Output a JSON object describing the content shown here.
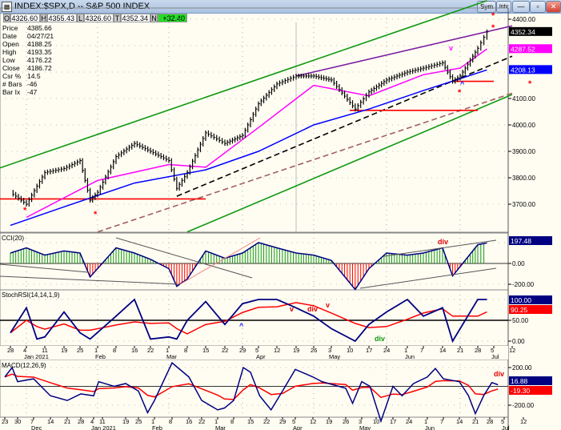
{
  "window": {
    "title": "INDEX:$SPX,D -- S&P 500 INDEX",
    "buttons": [
      "Sym",
      "Intv"
    ]
  },
  "ohlc_bar": {
    "O": "4326.60",
    "H": "4355.43",
    "L": "4326.60",
    "T": "4352.34",
    "N": "+32.40"
  },
  "info_panel": [
    [
      "Price",
      "4385.66"
    ],
    [
      "Date",
      "04/27/21"
    ],
    [
      "Open",
      "4188.25"
    ],
    [
      "High",
      "4193.35"
    ],
    [
      "Low",
      "4176.22"
    ],
    [
      "Close",
      "4186.72"
    ],
    [
      "Csr %",
      "14.5"
    ],
    [
      "# Bars",
      "-46"
    ],
    [
      "Bar Ix",
      "-47"
    ]
  ],
  "colors": {
    "up_channel": "#119911",
    "ma_fast": "#ff00ff",
    "ma_slow": "#0000ff",
    "cci_pos": "#119911",
    "cci_neg": "#ff0000",
    "indicator": "#000080",
    "signal": "#ff0000",
    "trend_purple": "#7b1fa2",
    "support": "#ff0000",
    "ohlc_change_bg": "#22dd22"
  },
  "chart_data": [
    {
      "type": "bar",
      "name": "price",
      "title": "INDEX:$SPX,D -- S&P 500 INDEX",
      "ylim": [
        3600,
        4450
      ],
      "yticks": [
        "4400.00",
        "4100.00",
        "4000.00",
        "3900.00",
        "3800.00",
        "3700.00"
      ],
      "last_labels": {
        "price": "4352.34",
        "ma_fast": "4287.52",
        "ma_slow": "4208.13"
      },
      "closes": [
        [
          "2020-12-28",
          3745
        ],
        [
          "2021-01-04",
          3700
        ],
        [
          "2021-01-11",
          3820
        ],
        [
          "2021-01-19",
          3835
        ],
        [
          "2021-01-25",
          3865
        ],
        [
          "2021-01-29",
          3715
        ],
        [
          "2021-02-01",
          3745
        ],
        [
          "2021-02-08",
          3880
        ],
        [
          "2021-02-16",
          3930
        ],
        [
          "2021-02-22",
          3900
        ],
        [
          "2021-03-01",
          3865
        ],
        [
          "2021-03-04",
          3760
        ],
        [
          "2021-03-08",
          3820
        ],
        [
          "2021-03-15",
          3970
        ],
        [
          "2021-03-22",
          3930
        ],
        [
          "2021-03-29",
          3960
        ],
        [
          "2021-04-05",
          4080
        ],
        [
          "2021-04-12",
          4155
        ],
        [
          "2021-04-19",
          4185
        ],
        [
          "2021-04-26",
          4185
        ],
        [
          "2021-05-03",
          4170
        ],
        [
          "2021-05-12",
          4060
        ],
        [
          "2021-05-17",
          4125
        ],
        [
          "2021-05-24",
          4170
        ],
        [
          "2021-06-01",
          4200
        ],
        [
          "2021-06-07",
          4215
        ],
        [
          "2021-06-14",
          4235
        ],
        [
          "2021-06-18",
          4165
        ],
        [
          "2021-06-21",
          4185
        ],
        [
          "2021-06-28",
          4290
        ],
        [
          "2021-07-02",
          4352
        ]
      ],
      "ma_fast": [
        [
          "2021-01-04",
          3650
        ],
        [
          "2021-02-01",
          3790
        ],
        [
          "2021-03-01",
          3850
        ],
        [
          "2021-03-15",
          3840
        ],
        [
          "2021-04-05",
          3990
        ],
        [
          "2021-04-26",
          4150
        ],
        [
          "2021-05-17",
          4110
        ],
        [
          "2021-06-07",
          4190
        ],
        [
          "2021-06-21",
          4215
        ],
        [
          "2021-07-02",
          4287.52
        ]
      ],
      "ma_slow": [
        [
          "2020-12-28",
          3620
        ],
        [
          "2021-01-19",
          3690
        ],
        [
          "2021-02-16",
          3780
        ],
        [
          "2021-03-15",
          3830
        ],
        [
          "2021-04-05",
          3900
        ],
        [
          "2021-04-26",
          4000
        ],
        [
          "2021-05-17",
          4060
        ],
        [
          "2021-06-07",
          4130
        ],
        [
          "2021-06-21",
          4175
        ],
        [
          "2021-07-02",
          4208.13
        ]
      ],
      "trendlines": [
        {
          "color": "#119911",
          "from": [
            "2020-12-21",
            3830
          ],
          "to": [
            "2021-07-02",
            4470
          ]
        },
        {
          "color": "#119911",
          "from": [
            "2021-03-08",
            3595
          ],
          "to": [
            "2021-07-12",
            4115
          ]
        },
        {
          "color": "#7b1fa2",
          "from": [
            "2021-04-19",
            4185
          ],
          "to": [
            "2021-07-12",
            4375
          ]
        },
        {
          "color": "#000000",
          "dash": true,
          "from": [
            "2021-03-04",
            3730
          ],
          "to": [
            "2021-07-12",
            4260
          ]
        },
        {
          "color": "#a06060",
          "dash": true,
          "from": [
            "2021-02-01",
            3595
          ],
          "to": [
            "2021-07-12",
            4120
          ]
        },
        {
          "color": "#ff0000",
          "from": [
            "2020-12-21",
            3720
          ],
          "to": [
            "2021-03-15",
            3720
          ]
        },
        {
          "color": "#ff0000",
          "from": [
            "2021-05-10",
            4055
          ],
          "to": [
            "2021-06-28",
            4055
          ]
        },
        {
          "color": "#ff0000",
          "from": [
            "2021-06-18",
            4165
          ],
          "to": [
            "2021-07-05",
            4165
          ]
        }
      ]
    },
    {
      "type": "bar",
      "name": "CCI",
      "title": "CCI(20)",
      "ylim": [
        -260,
        260
      ],
      "yticks": [
        "197.48",
        "0.00",
        "-200.00"
      ],
      "values": [
        [
          "2020-12-28",
          100
        ],
        [
          "2021-01-04",
          150
        ],
        [
          "2021-01-11",
          80
        ],
        [
          "2021-01-19",
          120
        ],
        [
          "2021-01-25",
          100
        ],
        [
          "2021-01-29",
          -130
        ],
        [
          "2021-02-08",
          150
        ],
        [
          "2021-02-16",
          100
        ],
        [
          "2021-02-22",
          40
        ],
        [
          "2021-03-01",
          -50
        ],
        [
          "2021-03-04",
          -220
        ],
        [
          "2021-03-08",
          -150
        ],
        [
          "2021-03-15",
          120
        ],
        [
          "2021-03-22",
          50
        ],
        [
          "2021-03-29",
          100
        ],
        [
          "2021-04-05",
          200
        ],
        [
          "2021-04-12",
          150
        ],
        [
          "2021-04-19",
          100
        ],
        [
          "2021-04-26",
          80
        ],
        [
          "2021-05-03",
          30
        ],
        [
          "2021-05-12",
          -250
        ],
        [
          "2021-05-17",
          -50
        ],
        [
          "2021-05-24",
          100
        ],
        [
          "2021-06-01",
          80
        ],
        [
          "2021-06-07",
          100
        ],
        [
          "2021-06-14",
          150
        ],
        [
          "2021-06-18",
          -120
        ],
        [
          "2021-06-28",
          180
        ],
        [
          "2021-07-02",
          197.48
        ]
      ],
      "annotations": [
        "div"
      ]
    },
    {
      "type": "line",
      "name": "StochRSI",
      "title": "StochRSI(14,14,1,9)",
      "ylim": [
        0,
        100
      ],
      "yticks": [
        "100.00",
        "50.00",
        "0.00"
      ],
      "last_signal": "90.25",
      "values": [
        [
          "2020-12-28",
          20
        ],
        [
          "2021-01-04",
          80
        ],
        [
          "2021-01-08",
          5
        ],
        [
          "2021-01-11",
          10
        ],
        [
          "2021-01-19",
          70
        ],
        [
          "2021-01-25",
          20
        ],
        [
          "2021-01-29",
          5
        ],
        [
          "2021-02-08",
          60
        ],
        [
          "2021-02-16",
          100
        ],
        [
          "2021-02-22",
          5
        ],
        [
          "2021-03-01",
          10
        ],
        [
          "2021-03-04",
          5
        ],
        [
          "2021-03-08",
          50
        ],
        [
          "2021-03-15",
          95
        ],
        [
          "2021-03-22",
          40
        ],
        [
          "2021-03-29",
          90
        ],
        [
          "2021-04-05",
          100
        ],
        [
          "2021-04-12",
          100
        ],
        [
          "2021-04-19",
          80
        ],
        [
          "2021-04-26",
          60
        ],
        [
          "2021-05-03",
          30
        ],
        [
          "2021-05-12",
          0
        ],
        [
          "2021-05-17",
          40
        ],
        [
          "2021-05-24",
          70
        ],
        [
          "2021-06-01",
          100
        ],
        [
          "2021-06-07",
          60
        ],
        [
          "2021-06-14",
          80
        ],
        [
          "2021-06-18",
          0
        ],
        [
          "2021-06-28",
          100
        ],
        [
          "2021-07-02",
          100
        ]
      ],
      "annotations": [
        "^",
        "v",
        "div",
        "v",
        "div"
      ],
      "xticks": [
        "28",
        "4",
        "11",
        "19",
        "25",
        "1",
        "8",
        "16",
        "22",
        "1",
        "8",
        "15",
        "22",
        "29",
        "5",
        "12",
        "19",
        "26",
        "3",
        "10",
        "17",
        "24",
        "1",
        "7",
        "14",
        "21",
        "28",
        "5",
        "12"
      ],
      "months": [
        "Jan 2021",
        "Feb",
        "Mar",
        "Apr",
        "May",
        "Jun",
        "Jul"
      ]
    },
    {
      "type": "line",
      "name": "MACD",
      "title": "MACD(12,26,9)",
      "ylim": [
        -420,
        300
      ],
      "yticks": [
        "200.00",
        "-200.00"
      ],
      "last_value": "16.88",
      "last_signal": "-19.30",
      "values": [
        [
          "2020-11-23",
          100
        ],
        [
          "2020-11-27",
          200
        ],
        [
          "2020-11-30",
          50
        ],
        [
          "2020-12-07",
          80
        ],
        [
          "2020-12-14",
          -100
        ],
        [
          "2020-12-21",
          -150
        ],
        [
          "2020-12-28",
          -80
        ],
        [
          "2021-01-04",
          -100
        ],
        [
          "2021-01-08",
          50
        ],
        [
          "2021-01-15",
          0
        ],
        [
          "2021-01-19",
          30
        ],
        [
          "2021-01-25",
          -50
        ],
        [
          "2021-01-29",
          -280
        ],
        [
          "2021-02-01",
          -150
        ],
        [
          "2021-02-08",
          250
        ],
        [
          "2021-02-16",
          100
        ],
        [
          "2021-02-22",
          -150
        ],
        [
          "2021-03-01",
          -250
        ],
        [
          "2021-03-04",
          -230
        ],
        [
          "2021-03-08",
          -150
        ],
        [
          "2021-03-12",
          200
        ],
        [
          "2021-03-15",
          150
        ],
        [
          "2021-03-19",
          -100
        ],
        [
          "2021-03-24",
          -250
        ],
        [
          "2021-03-29",
          -50
        ],
        [
          "2021-04-05",
          180
        ],
        [
          "2021-04-12",
          100
        ],
        [
          "2021-04-16",
          50
        ],
        [
          "2021-04-26",
          -20
        ],
        [
          "2021-04-29",
          -180
        ],
        [
          "2021-05-03",
          50
        ],
        [
          "2021-05-07",
          0
        ],
        [
          "2021-05-12",
          -370
        ],
        [
          "2021-05-17",
          0
        ],
        [
          "2021-05-21",
          -100
        ],
        [
          "2021-05-26",
          30
        ],
        [
          "2021-06-01",
          100
        ],
        [
          "2021-06-04",
          190
        ],
        [
          "2021-06-07",
          80
        ],
        [
          "2021-06-14",
          50
        ],
        [
          "2021-06-18",
          -100
        ],
        [
          "2021-06-21",
          -290
        ],
        [
          "2021-06-25",
          -100
        ],
        [
          "2021-06-29",
          40
        ],
        [
          "2021-07-02",
          16.88
        ]
      ],
      "annotations": [
        "div"
      ],
      "xticks": [
        "23",
        "30",
        "7",
        "14",
        "21",
        "28",
        "4",
        "11",
        "19",
        "25",
        "1",
        "8",
        "16",
        "22",
        "1",
        "8",
        "15",
        "22",
        "29",
        "5",
        "12",
        "19",
        "26",
        "3",
        "10",
        "17",
        "24",
        "1",
        "7",
        "14",
        "21",
        "28",
        "5",
        "12"
      ],
      "months": [
        "Dec",
        "Jan 2021",
        "Feb",
        "Mar",
        "Apr",
        "May",
        "Jun",
        "Jul"
      ]
    }
  ]
}
